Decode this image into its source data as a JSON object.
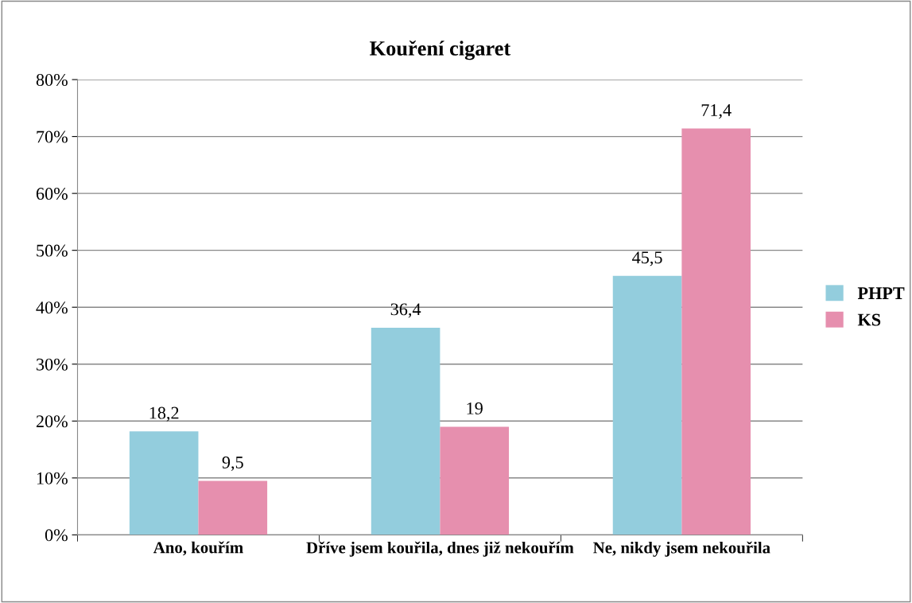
{
  "chart_data": {
    "type": "bar",
    "title": "Kouření cigaret",
    "categories": [
      "Ano, kouřím",
      "Dříve jsem kouřila, dnes již nekouřím",
      "Ne, nikdy jsem nekouřila"
    ],
    "series": [
      {
        "name": "PHPT",
        "color": "#93cddd",
        "values": [
          18.2,
          36.4,
          45.5
        ],
        "value_labels": [
          "18,2",
          "36,4",
          "45,5"
        ]
      },
      {
        "name": "KS",
        "color": "#e68fae",
        "values": [
          9.5,
          19,
          71.4
        ],
        "value_labels": [
          "9,5",
          "19",
          "71,4"
        ]
      }
    ],
    "ylim": [
      0,
      80
    ],
    "yticks": [
      {
        "value": 0,
        "label": "0%"
      },
      {
        "value": 10,
        "label": "10%"
      },
      {
        "value": 20,
        "label": "20%"
      },
      {
        "value": 30,
        "label": "30%"
      },
      {
        "value": 40,
        "label": "40%"
      },
      {
        "value": 50,
        "label": "50%"
      },
      {
        "value": 60,
        "label": "60%"
      },
      {
        "value": 70,
        "label": "70%"
      },
      {
        "value": 80,
        "label": "80%"
      }
    ],
    "grid": "y",
    "legend": "right"
  }
}
